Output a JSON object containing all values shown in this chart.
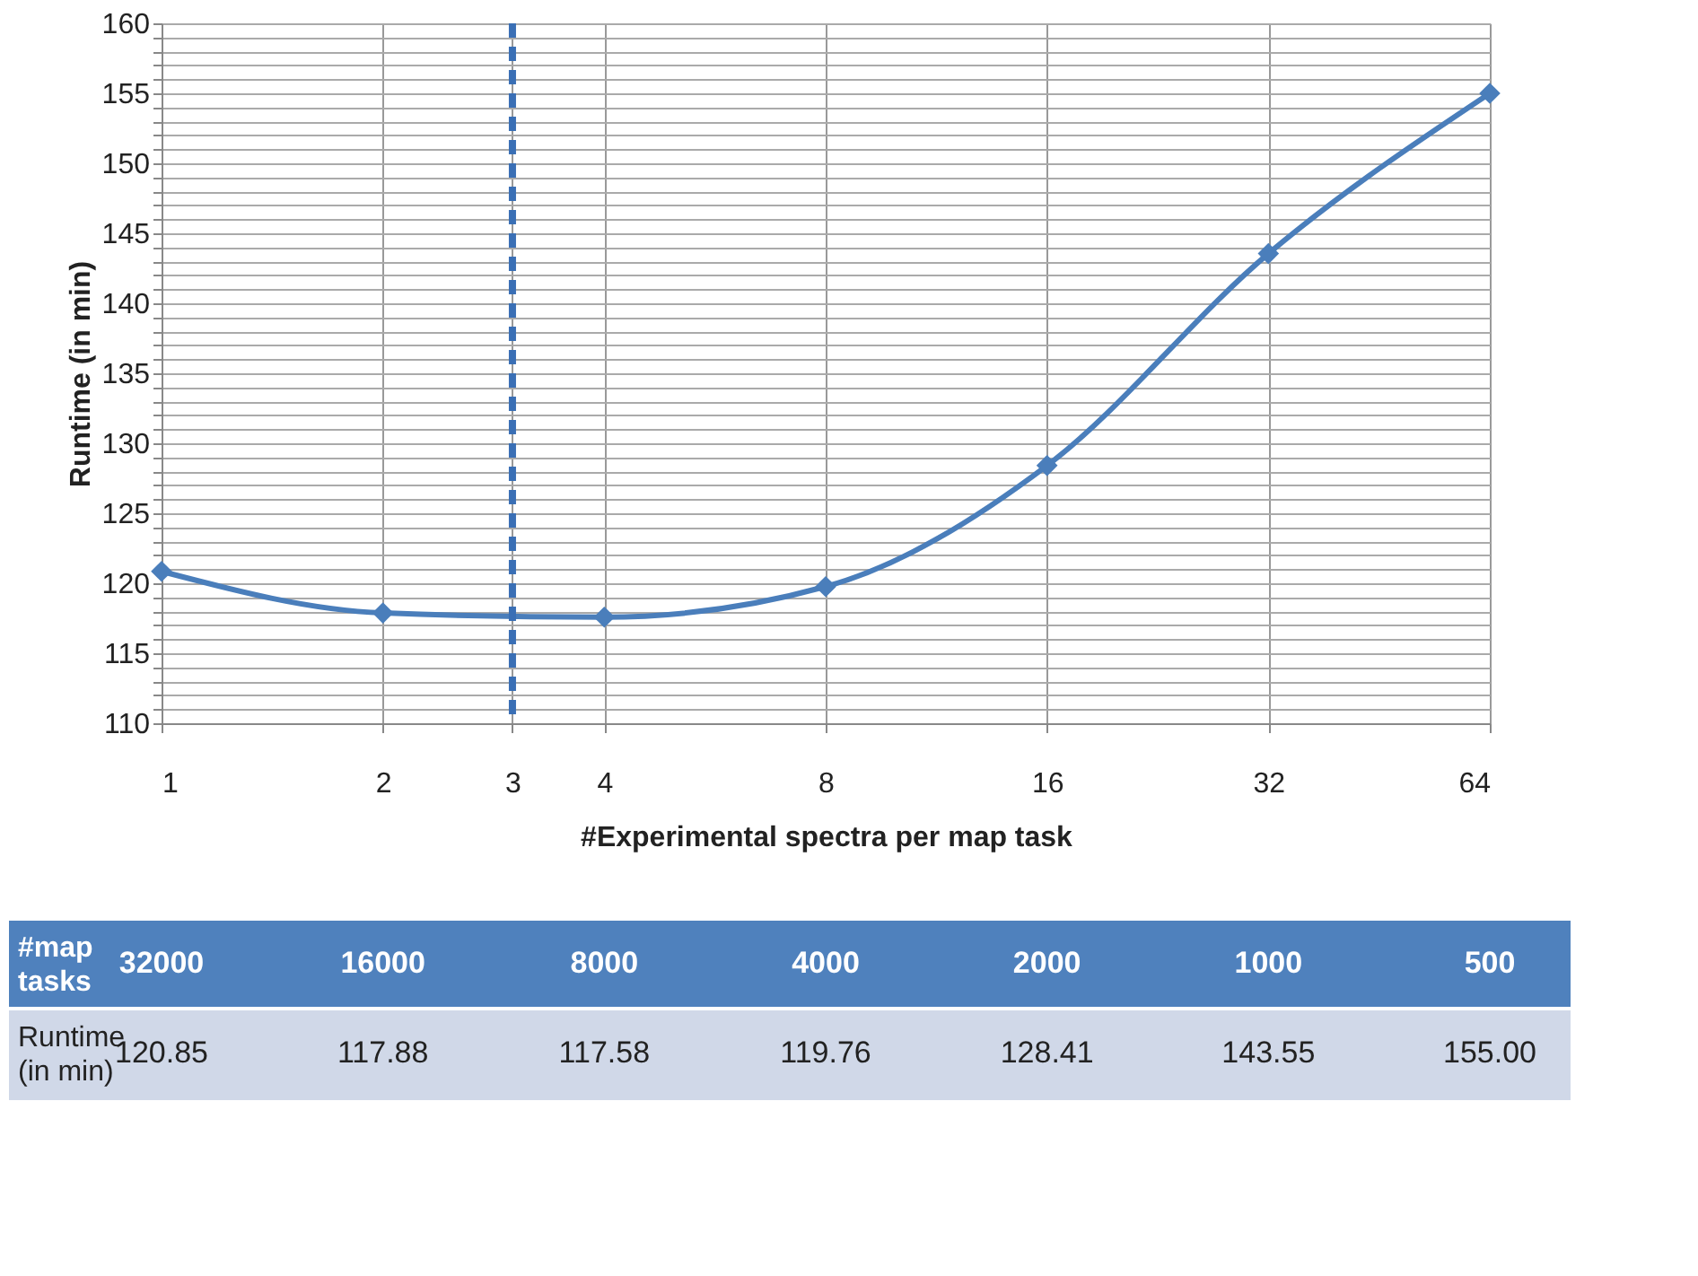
{
  "chart_data": {
    "type": "line",
    "xlabel": "#Experimental spectra per map task",
    "ylabel": "Runtime (in min)",
    "x": [
      1,
      2,
      4,
      8,
      16,
      32,
      64
    ],
    "series": [
      {
        "color": "#4a7ebb",
        "values": [
          120.85,
          117.88,
          117.58,
          119.76,
          128.41,
          143.55,
          155.0
        ]
      }
    ],
    "log": "x",
    "xlim": [
      1,
      64
    ],
    "xticks": [
      1,
      2,
      3,
      4,
      8,
      16,
      32,
      64
    ],
    "ylim": [
      110,
      160
    ],
    "yticks": [
      110,
      {
        "value": 111,
        "label": null
      },
      {
        "value": 112,
        "label": null
      },
      {
        "value": 113,
        "label": null
      },
      {
        "value": 114,
        "label": null
      },
      115,
      {
        "value": 116,
        "label": null
      },
      {
        "value": 117,
        "label": null
      },
      {
        "value": 118,
        "label": null
      },
      {
        "value": 119,
        "label": null
      },
      120,
      {
        "value": 121,
        "label": null
      },
      {
        "value": 122,
        "label": null
      },
      {
        "value": 123,
        "label": null
      },
      {
        "value": 124,
        "label": null
      },
      125,
      {
        "value": 126,
        "label": null
      },
      {
        "value": 127,
        "label": null
      },
      {
        "value": 128,
        "label": null
      },
      {
        "value": 129,
        "label": null
      },
      130,
      {
        "value": 131,
        "label": null
      },
      {
        "value": 132,
        "label": null
      },
      {
        "value": 133,
        "label": null
      },
      {
        "value": 134,
        "label": null
      },
      135,
      {
        "value": 136,
        "label": null
      },
      {
        "value": 137,
        "label": null
      },
      {
        "value": 138,
        "label": null
      },
      {
        "value": 139,
        "label": null
      },
      140,
      {
        "value": 141,
        "label": null
      },
      {
        "value": 142,
        "label": null
      },
      {
        "value": 143,
        "label": null
      },
      {
        "value": 144,
        "label": null
      },
      145,
      {
        "value": 146,
        "label": null
      },
      {
        "value": 147,
        "label": null
      },
      {
        "value": 148,
        "label": null
      },
      {
        "value": 149,
        "label": null
      },
      150,
      {
        "value": 151,
        "label": null
      },
      {
        "value": 152,
        "label": null
      },
      {
        "value": 153,
        "label": null
      },
      {
        "value": 154,
        "label": null
      },
      155,
      {
        "value": 156,
        "label": null
      },
      {
        "value": 157,
        "label": null
      },
      {
        "value": 158,
        "label": null
      },
      {
        "value": 159,
        "label": null
      },
      160
    ],
    "grid": true,
    "marker": "diamond",
    "line_style": "solid",
    "ref_lines": [
      {
        "axis": "x",
        "value": 3,
        "color": "#3a6fb5",
        "line_style": "dashed"
      }
    ],
    "annotations": [
      "#map tasks",
      "Runtime (in min)",
      "32000",
      "16000",
      "8000",
      "4000",
      "2000",
      "1000",
      "500",
      "120.85",
      "117.88",
      "117.58",
      "119.76",
      "128.41",
      "143.55",
      "155.00"
    ]
  }
}
